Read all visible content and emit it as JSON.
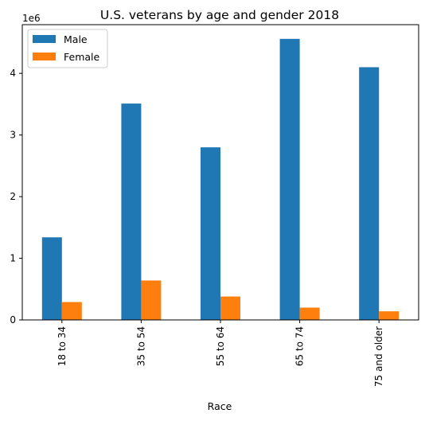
{
  "chart_data": {
    "type": "bar",
    "title": "U.S. veterans by age and gender 2018",
    "xlabel": "Race",
    "ylabel": "",
    "y_offset_label": "1e6",
    "categories": [
      "18 to 34",
      "35 to 54",
      "55 to 64",
      "65 to 74",
      "75 and older"
    ],
    "series": [
      {
        "name": "Male",
        "color": "#1f77b4",
        "values": [
          1340000,
          3510000,
          2800000,
          4560000,
          4100000
        ]
      },
      {
        "name": "Female",
        "color": "#ff7f0e",
        "values": [
          290000,
          640000,
          380000,
          200000,
          140000
        ]
      }
    ],
    "ylim": [
      0,
      4790000
    ],
    "yticks": [
      0,
      1,
      2,
      3,
      4
    ],
    "grid": false,
    "legend_position": "top-left"
  }
}
